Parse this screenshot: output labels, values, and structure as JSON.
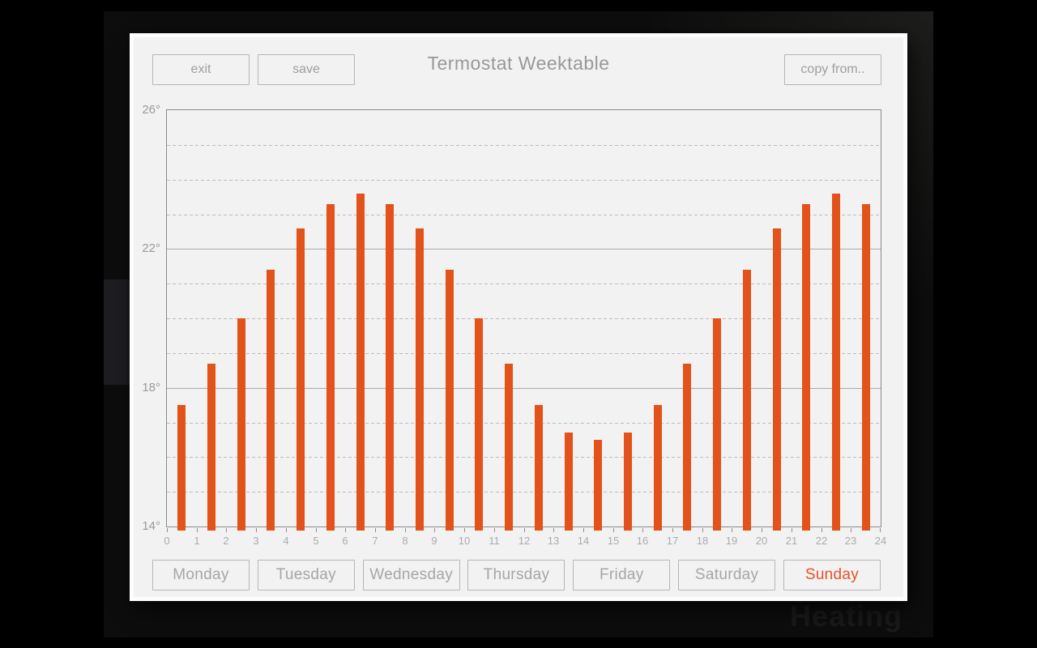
{
  "window": {
    "title": "Termostat Weektable",
    "buttons": {
      "exit": "exit",
      "save": "save",
      "copy_from": "copy from.."
    }
  },
  "background": {
    "watermark": "Heating"
  },
  "days": [
    {
      "label": "Monday",
      "active": false
    },
    {
      "label": "Tuesday",
      "active": false
    },
    {
      "label": "Wednesday",
      "active": false
    },
    {
      "label": "Thursday",
      "active": false
    },
    {
      "label": "Friday",
      "active": false
    },
    {
      "label": "Saturday",
      "active": false
    },
    {
      "label": "Sunday",
      "active": true
    }
  ],
  "colors": {
    "bar_accent": "#e4521b",
    "active_day_text": "#e8502a",
    "panel_bg": "#f2f2f2"
  },
  "chart_data": {
    "type": "bar",
    "title": "",
    "xlabel": "",
    "ylabel": "",
    "x_hours": [
      0,
      1,
      2,
      3,
      4,
      5,
      6,
      7,
      8,
      9,
      10,
      11,
      12,
      13,
      14,
      15,
      16,
      17,
      18,
      19,
      20,
      21,
      22,
      23
    ],
    "values": [
      17.5,
      18.7,
      20.0,
      21.4,
      22.6,
      23.3,
      23.6,
      23.3,
      22.6,
      21.4,
      20.0,
      18.7,
      17.5,
      16.7,
      16.5,
      16.7,
      17.5,
      18.7,
      20.0,
      21.4,
      22.6,
      23.3,
      23.6,
      23.3
    ],
    "ylim": [
      14,
      26
    ],
    "y_major_ticks": [
      26,
      22,
      18,
      14
    ],
    "y_tick_labels": [
      "26°",
      "22°",
      "18°",
      "14°"
    ],
    "y_solid_lines": [
      22,
      18
    ],
    "x_tick_labels": [
      "0",
      "1",
      "2",
      "3",
      "4",
      "5",
      "6",
      "7",
      "8",
      "9",
      "10",
      "11",
      "12",
      "13",
      "14",
      "15",
      "16",
      "17",
      "18",
      "19",
      "20",
      "21",
      "22",
      "23",
      "24"
    ],
    "grid": "horizontal dashed line each degree, solid at labeled ticks",
    "legend": "none",
    "bar_color": "#e4521b"
  }
}
